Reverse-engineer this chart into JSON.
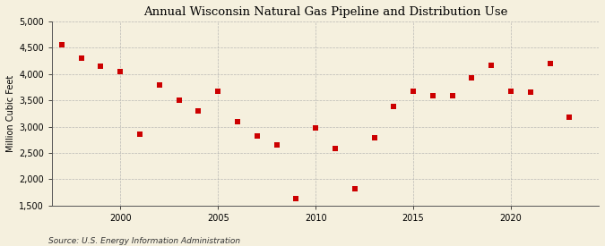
{
  "title": "Annual Wisconsin Natural Gas Pipeline and Distribution Use",
  "ylabel": "Million Cubic Feet",
  "source": "Source: U.S. Energy Information Administration",
  "xlim": [
    1996.5,
    2024.5
  ],
  "ylim": [
    1500,
    5000
  ],
  "yticks": [
    1500,
    2000,
    2500,
    3000,
    3500,
    4000,
    4500,
    5000
  ],
  "xticks": [
    2000,
    2005,
    2010,
    2015,
    2020
  ],
  "years": [
    1997,
    1998,
    1999,
    2000,
    2001,
    2002,
    2003,
    2004,
    2005,
    2006,
    2007,
    2008,
    2009,
    2010,
    2011,
    2012,
    2013,
    2014,
    2015,
    2016,
    2017,
    2018,
    2019,
    2020,
    2021,
    2022,
    2023
  ],
  "values": [
    4560,
    4300,
    4150,
    4050,
    2850,
    3790,
    3510,
    3290,
    3670,
    3100,
    2820,
    2650,
    1640,
    2970,
    2590,
    1820,
    2790,
    3390,
    3670,
    3580,
    3580,
    3930,
    4160,
    3670,
    3650,
    4200,
    3180
  ],
  "marker_color": "#cc0000",
  "marker_size": 18,
  "bg_color": "#f5f0de",
  "grid_color": "#aaaaaa",
  "title_fontsize": 9.5,
  "label_fontsize": 7,
  "tick_fontsize": 7,
  "source_fontsize": 6.5
}
